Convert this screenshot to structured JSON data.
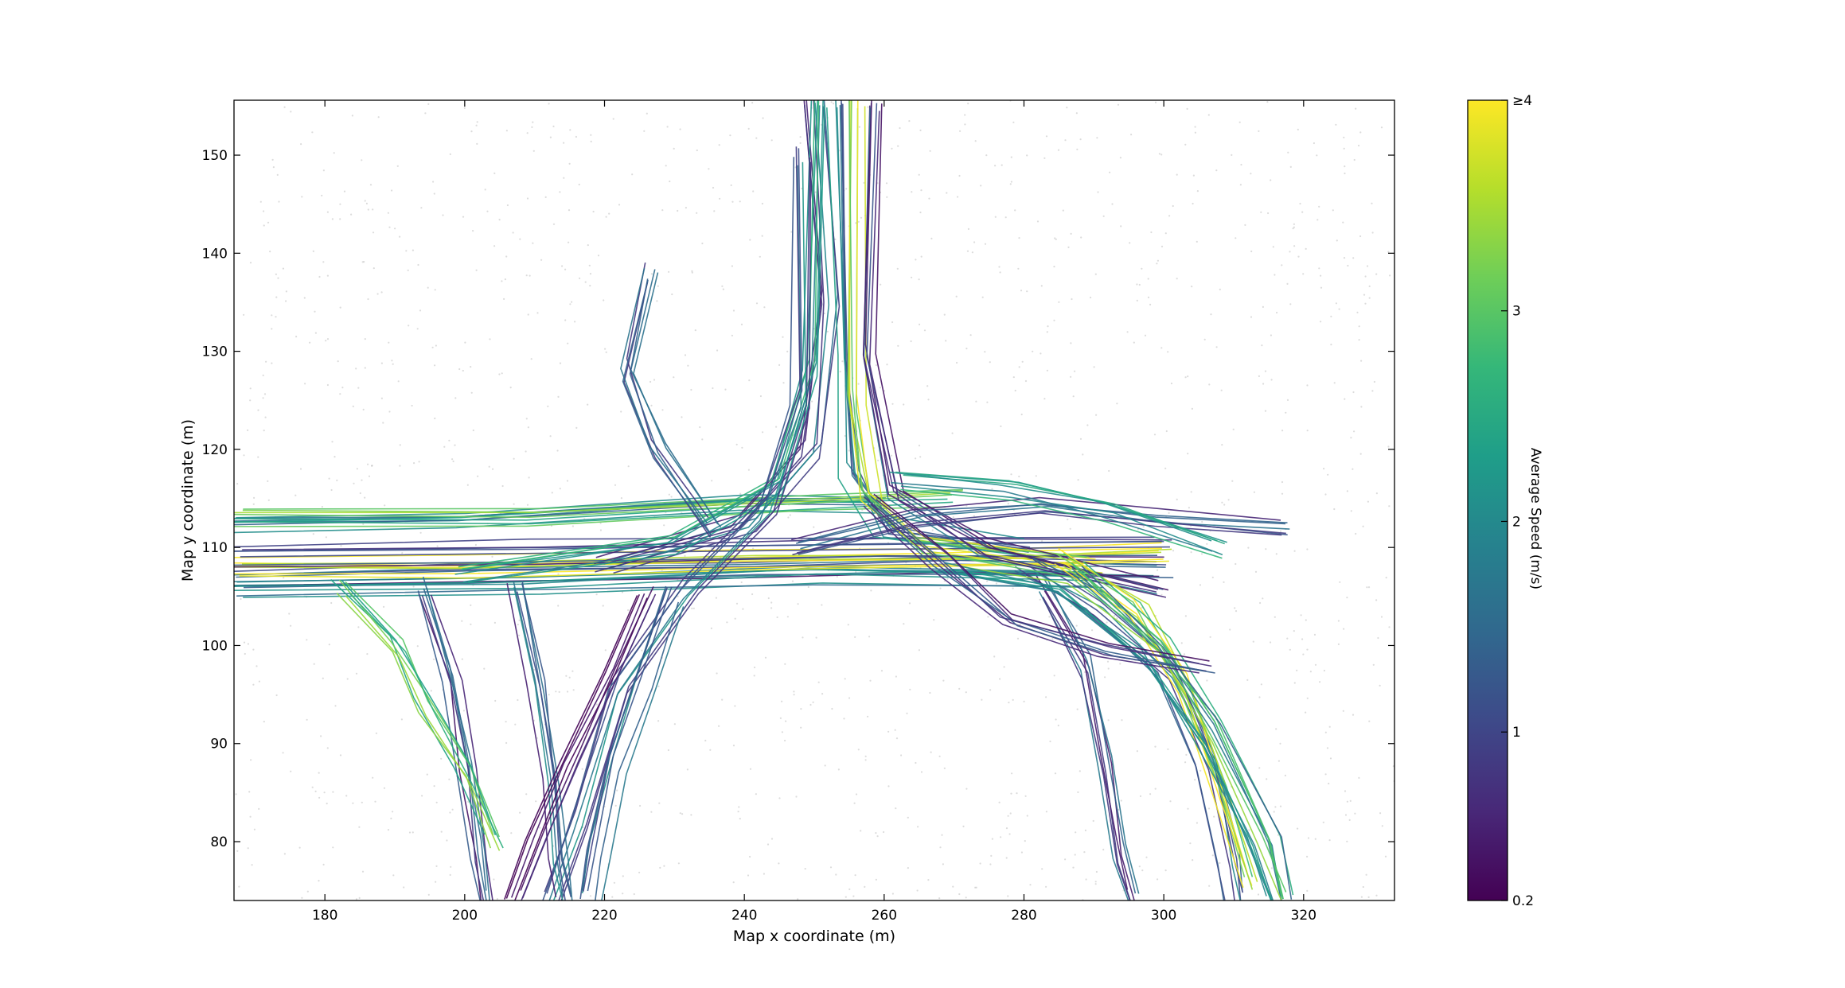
{
  "chart_data": {
    "type": "line",
    "xlabel": "Map x coordinate (m)",
    "ylabel": "Map y coordinate (m)",
    "xlim": [
      167,
      333
    ],
    "ylim": [
      74,
      155.6
    ],
    "x_ticks": [
      180,
      200,
      220,
      240,
      260,
      280,
      300,
      320
    ],
    "y_ticks": [
      80,
      90,
      100,
      110,
      120,
      130,
      140,
      150
    ],
    "grid": false,
    "colormap": "viridis",
    "colorbar": {
      "label": "Average Speed (m/s)",
      "range": [
        0.2,
        4
      ],
      "tick_values": [
        0.2,
        1,
        2,
        3,
        4
      ],
      "tick_labels": [
        "0.2",
        "1",
        "2",
        "3",
        "≥4"
      ],
      "colors": [
        "#440154",
        "#482878",
        "#3e4989",
        "#31688e",
        "#26828e",
        "#1f9e89",
        "#35b779",
        "#6ece58",
        "#b5de2b",
        "#fde725"
      ]
    },
    "background": {
      "description_color": "#9a9a9a"
    },
    "series": [
      {
        "speed": 1.2,
        "points": [
          [
            167,
            107
          ],
          [
            200,
            107.5
          ],
          [
            240,
            108
          ],
          [
            270,
            108.5
          ],
          [
            300,
            108
          ]
        ]
      },
      {
        "speed": 2.2,
        "points": [
          [
            167,
            106
          ],
          [
            210,
            106.5
          ],
          [
            250,
            107.5
          ],
          [
            290,
            107
          ]
        ]
      },
      {
        "speed": 3.6,
        "points": [
          [
            167,
            108
          ],
          [
            200,
            108
          ],
          [
            240,
            108.5
          ],
          [
            280,
            109
          ],
          [
            300,
            109.5
          ]
        ]
      },
      {
        "speed": 1.0,
        "points": [
          [
            167,
            109
          ],
          [
            210,
            109.5
          ],
          [
            260,
            110
          ],
          [
            300,
            110
          ]
        ]
      },
      {
        "speed": 1.6,
        "points": [
          [
            167,
            112
          ],
          [
            200,
            112.5
          ],
          [
            240,
            114
          ],
          [
            260,
            114
          ]
        ]
      },
      {
        "speed": 2.8,
        "points": [
          [
            167,
            113
          ],
          [
            210,
            113
          ],
          [
            250,
            114.5
          ],
          [
            270,
            115
          ]
        ]
      },
      {
        "speed": 1.3,
        "points": [
          [
            250,
            155.6
          ],
          [
            252,
            135
          ],
          [
            250,
            120
          ],
          [
            240,
            112
          ],
          [
            220,
            108
          ]
        ]
      },
      {
        "speed": 1.8,
        "points": [
          [
            253,
            155.6
          ],
          [
            254,
            130
          ],
          [
            255,
            118
          ],
          [
            260,
            112
          ],
          [
            280,
            110
          ]
        ]
      },
      {
        "speed": 3.2,
        "points": [
          [
            256,
            155.6
          ],
          [
            256,
            125
          ],
          [
            258,
            115
          ],
          [
            265,
            110
          ],
          [
            290,
            108
          ]
        ]
      },
      {
        "speed": 1.1,
        "points": [
          [
            259,
            155.6
          ],
          [
            258,
            130
          ],
          [
            262,
            116
          ],
          [
            275,
            110
          ],
          [
            300,
            106
          ]
        ]
      },
      {
        "speed": 2.4,
        "points": [
          [
            251,
            155.6
          ],
          [
            250,
            128
          ],
          [
            245,
            116
          ],
          [
            230,
            110
          ],
          [
            200,
            107
          ]
        ]
      },
      {
        "speed": 1.5,
        "points": [
          [
            248,
            150
          ],
          [
            248,
            125
          ],
          [
            243,
            114
          ],
          [
            232,
            106
          ],
          [
            222,
            96
          ],
          [
            216,
            82
          ],
          [
            212,
            74
          ]
        ]
      },
      {
        "speed": 1.4,
        "points": [
          [
            280,
            108
          ],
          [
            290,
            104
          ],
          [
            300,
            97
          ],
          [
            306,
            88
          ],
          [
            309,
            78
          ],
          [
            310,
            74
          ]
        ]
      },
      {
        "speed": 3.5,
        "points": [
          [
            285,
            109
          ],
          [
            296,
            104
          ],
          [
            303,
            96
          ],
          [
            308,
            85
          ],
          [
            312,
            76
          ]
        ]
      },
      {
        "speed": 2.1,
        "points": [
          [
            288,
            108
          ],
          [
            300,
            100
          ],
          [
            308,
            92
          ],
          [
            316,
            80
          ],
          [
            318,
            74
          ]
        ]
      },
      {
        "speed": 1.2,
        "points": [
          [
            282,
            106
          ],
          [
            288,
            98
          ],
          [
            291,
            88
          ],
          [
            293,
            79
          ],
          [
            295,
            74
          ]
        ]
      },
      {
        "speed": 2.6,
        "points": [
          [
            270,
            108
          ],
          [
            285,
            106
          ],
          [
            298,
            99
          ],
          [
            306,
            90
          ],
          [
            313,
            80
          ],
          [
            316,
            74
          ]
        ]
      },
      {
        "speed": 1.0,
        "points": [
          [
            194,
            106
          ],
          [
            198,
            97
          ],
          [
            200,
            88
          ],
          [
            202,
            79
          ],
          [
            203,
            74
          ]
        ]
      },
      {
        "speed": 3.0,
        "points": [
          [
            182,
            106
          ],
          [
            190,
            100
          ],
          [
            194,
            94
          ],
          [
            200,
            87
          ],
          [
            204,
            80
          ]
        ]
      },
      {
        "speed": 1.3,
        "points": [
          [
            207,
            106
          ],
          [
            210,
            96
          ],
          [
            212,
            86
          ],
          [
            213,
            78
          ],
          [
            214,
            74
          ]
        ]
      },
      {
        "speed": 0.6,
        "points": [
          [
            226,
            105
          ],
          [
            221,
            97
          ],
          [
            215,
            88
          ],
          [
            210,
            80
          ],
          [
            207,
            74
          ]
        ]
      },
      {
        "speed": 1.7,
        "points": [
          [
            230,
            105
          ],
          [
            226,
            96
          ],
          [
            222,
            88
          ],
          [
            219,
            79
          ],
          [
            218,
            74
          ]
        ]
      },
      {
        "speed": 1.1,
        "points": [
          [
            248,
            110
          ],
          [
            265,
            113
          ],
          [
            283,
            114
          ],
          [
            300,
            113
          ],
          [
            318,
            112
          ]
        ]
      },
      {
        "speed": 2.0,
        "points": [
          [
            262,
            117
          ],
          [
            278,
            116
          ],
          [
            292,
            114
          ],
          [
            308,
            110
          ]
        ]
      },
      {
        "speed": 0.8,
        "points": [
          [
            258,
            115
          ],
          [
            268,
            109
          ],
          [
            278,
            103
          ],
          [
            292,
            100
          ],
          [
            306,
            98
          ]
        ]
      },
      {
        "speed": 1.4,
        "points": [
          [
            236,
            112
          ],
          [
            228,
            120
          ],
          [
            224,
            128
          ],
          [
            227,
            138
          ]
        ]
      }
    ]
  }
}
